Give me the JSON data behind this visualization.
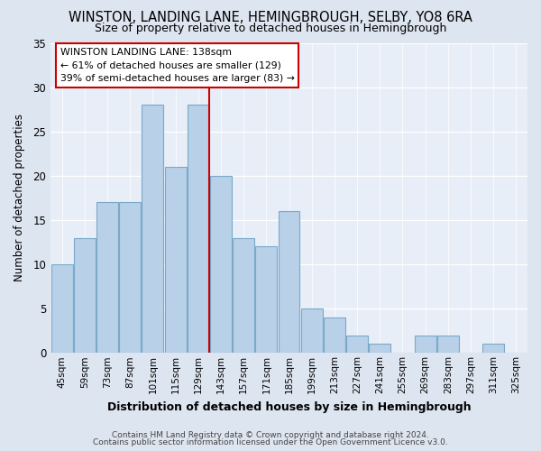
{
  "title": "WINSTON, LANDING LANE, HEMINGBROUGH, SELBY, YO8 6RA",
  "subtitle": "Size of property relative to detached houses in Hemingbrough",
  "xlabel": "Distribution of detached houses by size in Hemingbrough",
  "ylabel": "Number of detached properties",
  "footnote1": "Contains HM Land Registry data © Crown copyright and database right 2024.",
  "footnote2": "Contains public sector information licensed under the Open Government Licence v3.0.",
  "bar_labels": [
    "45sqm",
    "59sqm",
    "73sqm",
    "87sqm",
    "101sqm",
    "115sqm",
    "129sqm",
    "143sqm",
    "157sqm",
    "171sqm",
    "185sqm",
    "199sqm",
    "213sqm",
    "227sqm",
    "241sqm",
    "255sqm",
    "269sqm",
    "283sqm",
    "297sqm",
    "311sqm",
    "325sqm"
  ],
  "bar_values": [
    10,
    13,
    17,
    17,
    28,
    21,
    28,
    20,
    13,
    12,
    16,
    5,
    4,
    2,
    1,
    0,
    2,
    2,
    0,
    1,
    0
  ],
  "bar_color": "#b8d0e8",
  "bar_edge_color": "#7aaac8",
  "highlight_line_color": "#cc0000",
  "highlight_bar_index": 7,
  "ylim": [
    0,
    35
  ],
  "yticks": [
    0,
    5,
    10,
    15,
    20,
    25,
    30,
    35
  ],
  "annotation_title": "WINSTON LANDING LANE: 138sqm",
  "annotation_line1": "← 61% of detached houses are smaller (129)",
  "annotation_line2": "39% of semi-detached houses are larger (83) →",
  "bg_color": "#e8eef8",
  "fig_bg_color": "#dde5f0"
}
